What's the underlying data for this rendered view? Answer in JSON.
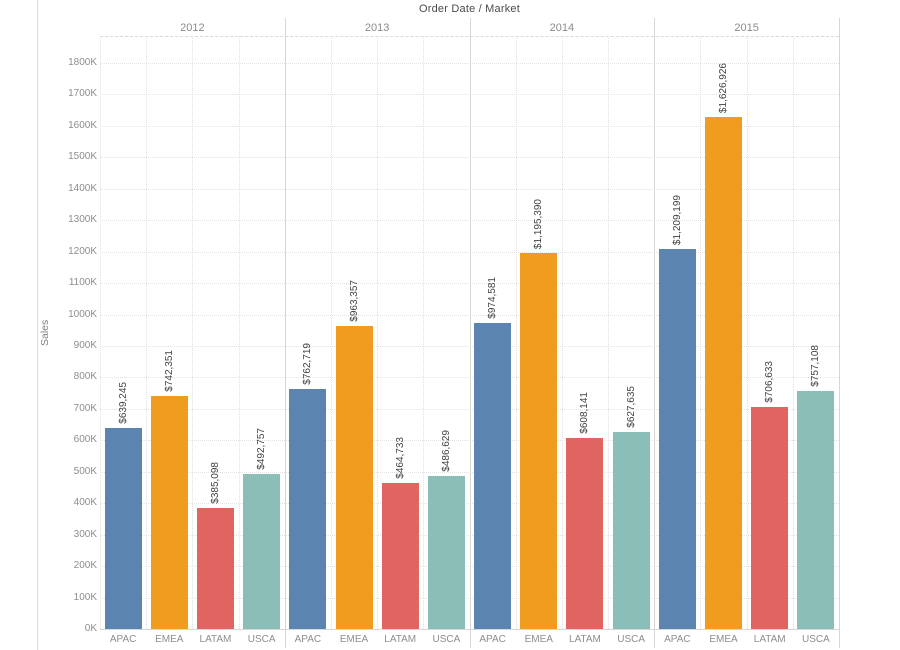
{
  "chart_data": {
    "type": "bar",
    "title": "Order Date / Market",
    "ylabel": "Sales",
    "xlabel": "",
    "panels": [
      "2012",
      "2013",
      "2014",
      "2015"
    ],
    "categories": [
      "APAC",
      "EMEA",
      "LATAM",
      "USCA"
    ],
    "series": [
      {
        "panel": "2012",
        "values": [
          639245,
          742351,
          385098,
          492757
        ],
        "labels": [
          "$639,245",
          "$742,351",
          "$385,098",
          "$492,757"
        ]
      },
      {
        "panel": "2013",
        "values": [
          762719,
          963357,
          464733,
          486629
        ],
        "labels": [
          "$762,719",
          "$963,357",
          "$464,733",
          "$486,629"
        ]
      },
      {
        "panel": "2014",
        "values": [
          974581,
          1195390,
          608141,
          627635
        ],
        "labels": [
          "$974,581",
          "$1,195,390",
          "$608,141",
          "$627,635"
        ]
      },
      {
        "panel": "2015",
        "values": [
          1209199,
          1626926,
          706633,
          757108
        ],
        "labels": [
          "$1,209,199",
          "$1,626,926",
          "$706,633",
          "$757,108"
        ]
      }
    ],
    "ylim": [
      0,
      1800000
    ],
    "ytick_step": 100000,
    "ytick_labels": [
      "0K",
      "100K",
      "200K",
      "300K",
      "400K",
      "500K",
      "600K",
      "700K",
      "800K",
      "900K",
      "1000K",
      "1100K",
      "1200K",
      "1300K",
      "1400K",
      "1500K",
      "1600K",
      "1700K",
      "1800K"
    ],
    "grid": true,
    "legend": "none",
    "colors": {
      "APAC": "#5B84B1",
      "EMEA": "#F09C1E",
      "LATAM": "#E06460",
      "USCA": "#8BBEB7"
    }
  }
}
